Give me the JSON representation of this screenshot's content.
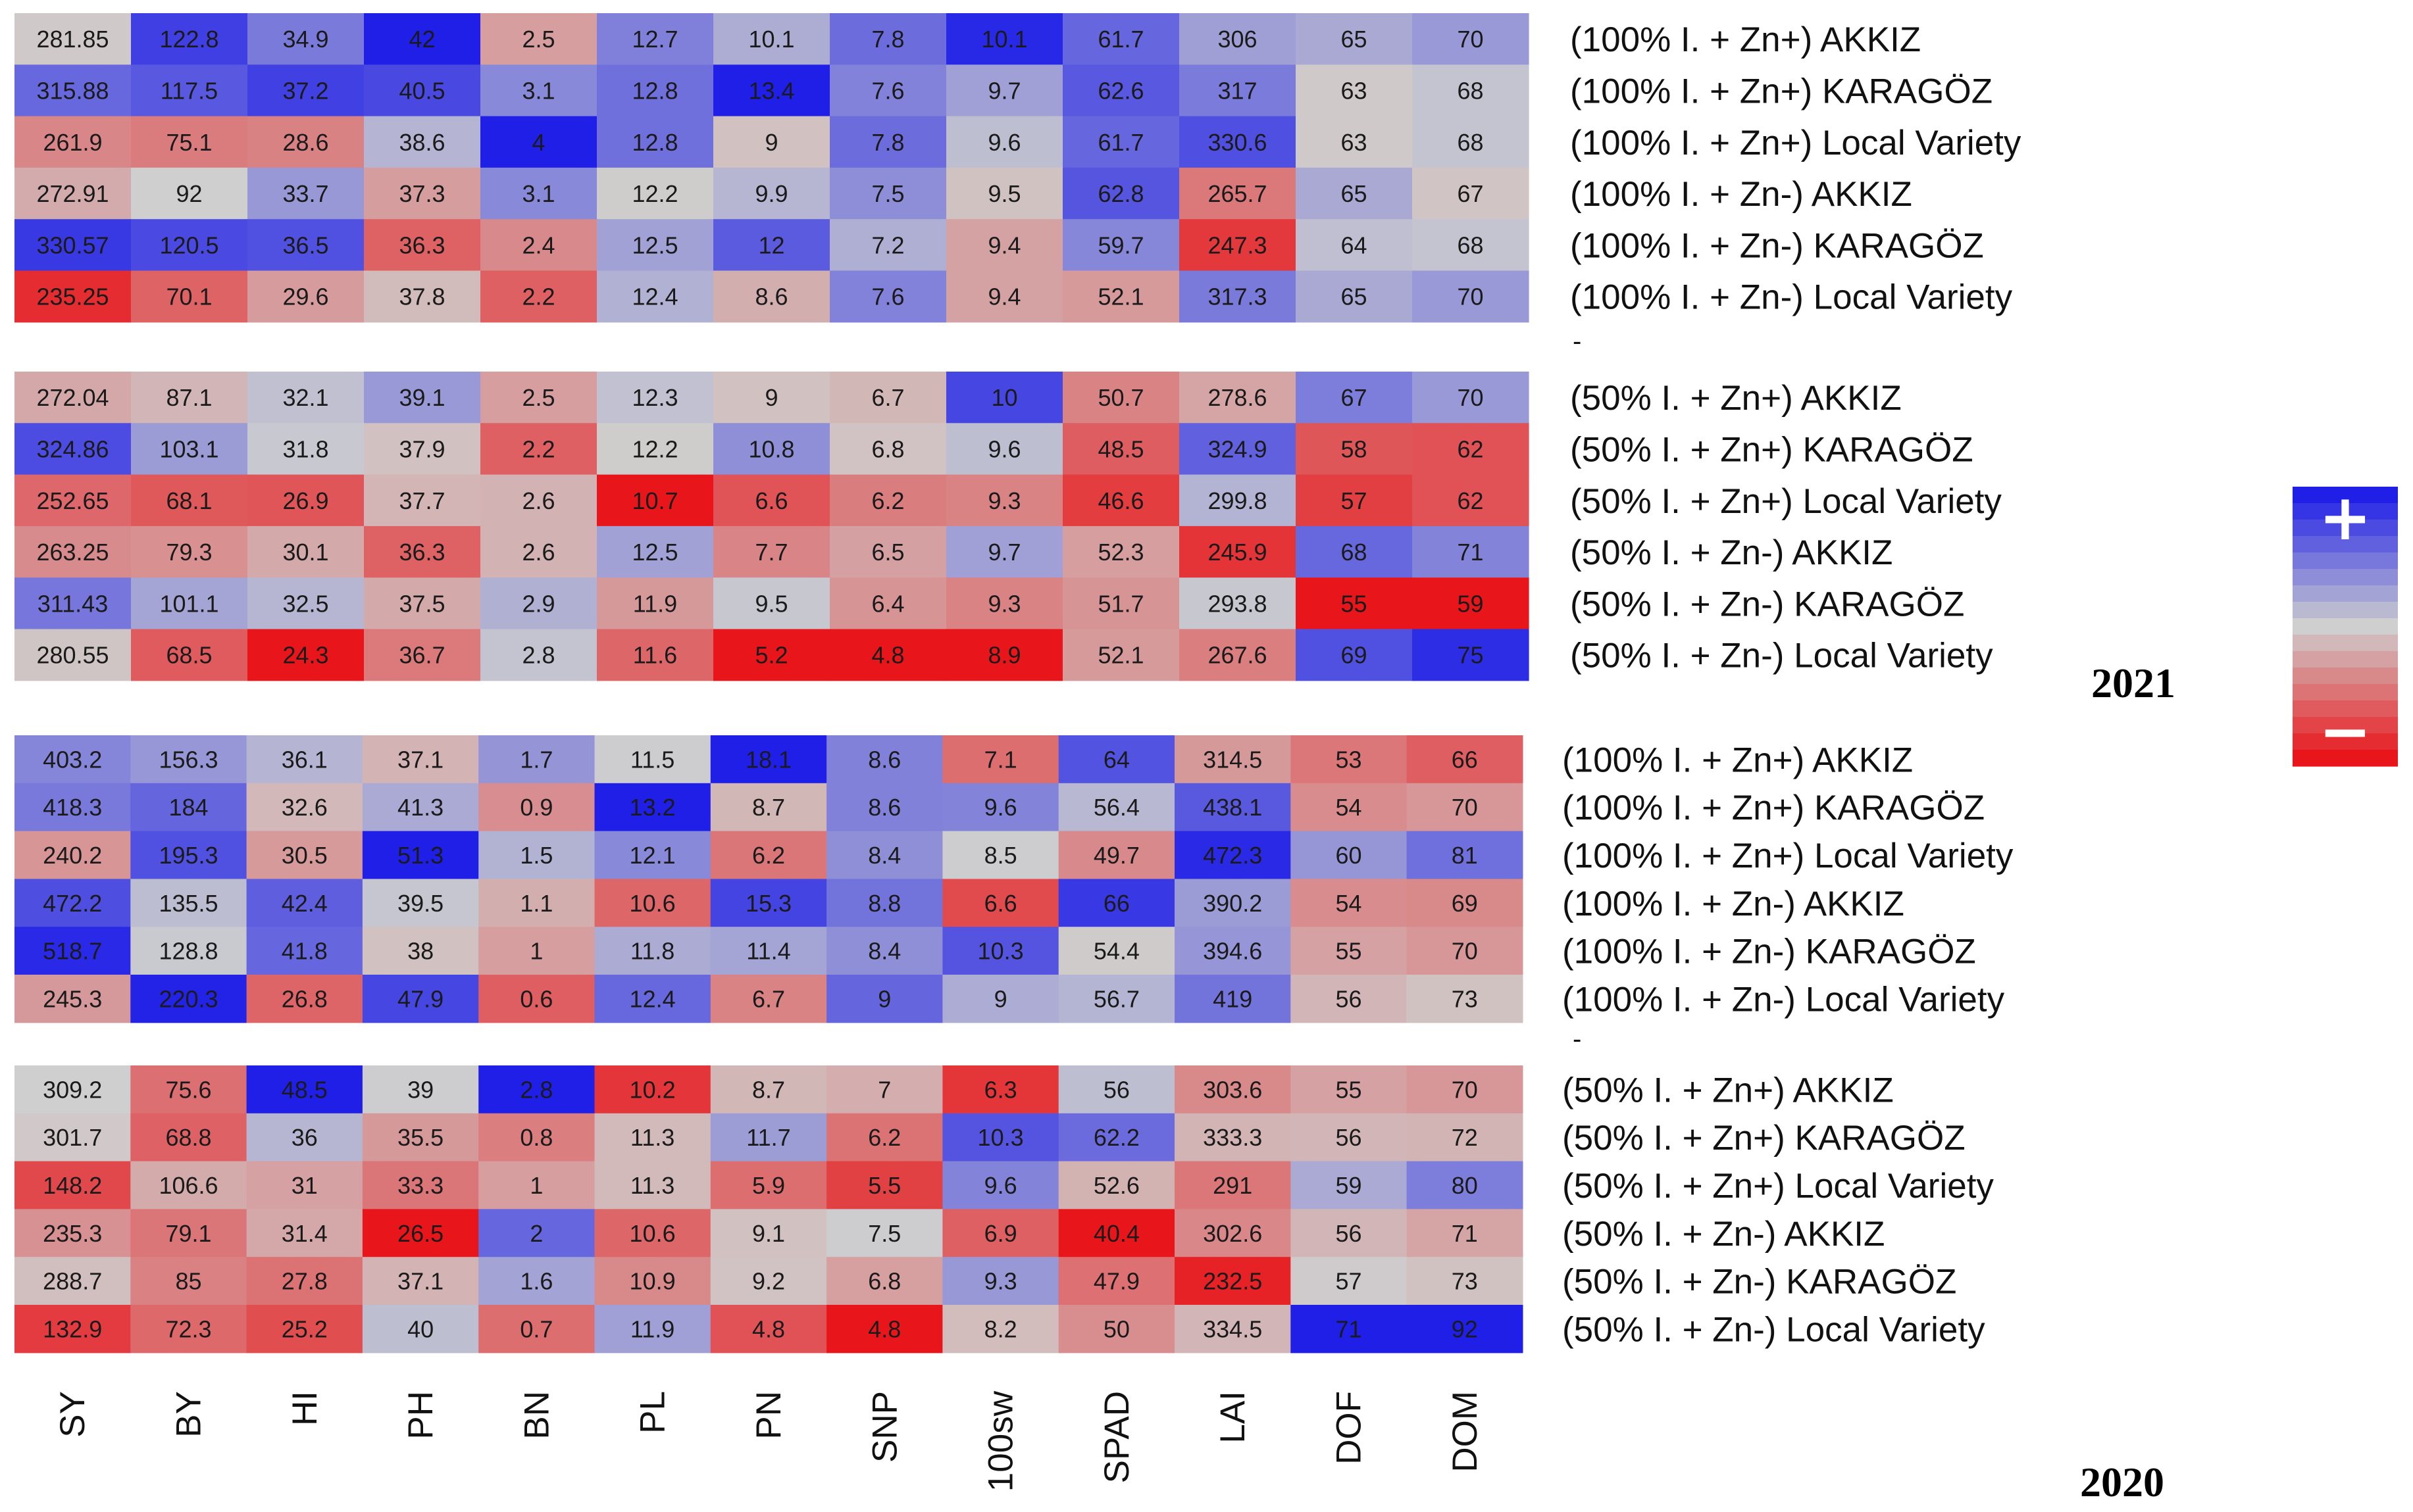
{
  "chart_data": {
    "type": "heatmap",
    "columns": [
      "SY",
      "BY",
      "HI",
      "PH",
      "BN",
      "PL",
      "PN",
      "SNP",
      "100sw",
      "SPAD",
      "LAI",
      "DOF",
      "DOM"
    ],
    "color_scale": {
      "high": "#1f1fe8",
      "mid": "#cfcfcf",
      "low": "#e8161a",
      "plus_label": "+",
      "minus_label": "−"
    },
    "separator": "-",
    "years": [
      {
        "year": "2021",
        "groups": [
          {
            "rows": [
              {
                "label": "(100% I. + Zn+) AKKIZ",
                "values": [
                  "281.85",
                  "122.8",
                  "34.9",
                  "42",
                  "2.5",
                  "12.7",
                  "10.1",
                  "7.8",
                  "10.1",
                  "61.7",
                  "306",
                  "65",
                  "70"
                ]
              },
              {
                "label": "(100% I. + Zn+) KARAGÖZ",
                "values": [
                  "315.88",
                  "117.5",
                  "37.2",
                  "40.5",
                  "3.1",
                  "12.8",
                  "13.4",
                  "7.6",
                  "9.7",
                  "62.6",
                  "317",
                  "63",
                  "68"
                ]
              },
              {
                "label": "(100% I. + Zn+) Local Variety",
                "values": [
                  "261.9",
                  "75.1",
                  "28.6",
                  "38.6",
                  "4",
                  "12.8",
                  "9",
                  "7.8",
                  "9.6",
                  "61.7",
                  "330.6",
                  "63",
                  "68"
                ]
              },
              {
                "label": "(100% I. + Zn-) AKKIZ",
                "values": [
                  "272.91",
                  "92",
                  "33.7",
                  "37.3",
                  "3.1",
                  "12.2",
                  "9.9",
                  "7.5",
                  "9.5",
                  "62.8",
                  "265.7",
                  "65",
                  "67"
                ]
              },
              {
                "label": "(100% I. + Zn-) KARAGÖZ",
                "values": [
                  "330.57",
                  "120.5",
                  "36.5",
                  "36.3",
                  "2.4",
                  "12.5",
                  "12",
                  "7.2",
                  "9.4",
                  "59.7",
                  "247.3",
                  "64",
                  "68"
                ]
              },
              {
                "label": "(100% I. + Zn-) Local Variety",
                "values": [
                  "235.25",
                  "70.1",
                  "29.6",
                  "37.8",
                  "2.2",
                  "12.4",
                  "8.6",
                  "7.6",
                  "9.4",
                  "52.1",
                  "317.3",
                  "65",
                  "70"
                ]
              }
            ]
          },
          {
            "rows": [
              {
                "label": "(50% I. + Zn+) AKKIZ",
                "values": [
                  "272.04",
                  "87.1",
                  "32.1",
                  "39.1",
                  "2.5",
                  "12.3",
                  "9",
                  "6.7",
                  "10",
                  "50.7",
                  "278.6",
                  "67",
                  "70"
                ]
              },
              {
                "label": "(50% I. + Zn+) KARAGÖZ",
                "values": [
                  "324.86",
                  "103.1",
                  "31.8",
                  "37.9",
                  "2.2",
                  "12.2",
                  "10.8",
                  "6.8",
                  "9.6",
                  "48.5",
                  "324.9",
                  "58",
                  "62"
                ]
              },
              {
                "label": "(50% I. + Zn+) Local Variety",
                "values": [
                  "252.65",
                  "68.1",
                  "26.9",
                  "37.7",
                  "2.6",
                  "10.7",
                  "6.6",
                  "6.2",
                  "9.3",
                  "46.6",
                  "299.8",
                  "57",
                  "62"
                ]
              },
              {
                "label": "(50% I. + Zn-) AKKIZ",
                "values": [
                  "263.25",
                  "79.3",
                  "30.1",
                  "36.3",
                  "2.6",
                  "12.5",
                  "7.7",
                  "6.5",
                  "9.7",
                  "52.3",
                  "245.9",
                  "68",
                  "71"
                ]
              },
              {
                "label": "(50% I. + Zn-) KARAGÖZ",
                "values": [
                  "311.43",
                  "101.1",
                  "32.5",
                  "37.5",
                  "2.9",
                  "11.9",
                  "9.5",
                  "6.4",
                  "9.3",
                  "51.7",
                  "293.8",
                  "55",
                  "59"
                ]
              },
              {
                "label": "(50% I. + Zn-) Local Variety",
                "values": [
                  "280.55",
                  "68.5",
                  "24.3",
                  "36.7",
                  "2.8",
                  "11.6",
                  "5.2",
                  "4.8",
                  "8.9",
                  "52.1",
                  "267.6",
                  "69",
                  "75"
                ]
              }
            ]
          }
        ]
      },
      {
        "year": "2020",
        "groups": [
          {
            "rows": [
              {
                "label": "(100% I. + Zn+) AKKIZ",
                "values": [
                  "403.2",
                  "156.3",
                  "36.1",
                  "37.1",
                  "1.7",
                  "11.5",
                  "18.1",
                  "8.6",
                  "7.1",
                  "64",
                  "314.5",
                  "53",
                  "66"
                ]
              },
              {
                "label": "(100% I. + Zn+) KARAGÖZ",
                "values": [
                  "418.3",
                  "184",
                  "32.6",
                  "41.3",
                  "0.9",
                  "13.2",
                  "8.7",
                  "8.6",
                  "9.6",
                  "56.4",
                  "438.1",
                  "54",
                  "70"
                ]
              },
              {
                "label": "(100% I. + Zn+) Local Variety",
                "values": [
                  "240.2",
                  "195.3",
                  "30.5",
                  "51.3",
                  "1.5",
                  "12.1",
                  "6.2",
                  "8.4",
                  "8.5",
                  "49.7",
                  "472.3",
                  "60",
                  "81"
                ]
              },
              {
                "label": "(100% I. + Zn-) AKKIZ",
                "values": [
                  "472.2",
                  "135.5",
                  "42.4",
                  "39.5",
                  "1.1",
                  "10.6",
                  "15.3",
                  "8.8",
                  "6.6",
                  "66",
                  "390.2",
                  "54",
                  "69"
                ]
              },
              {
                "label": "(100% I. + Zn-) KARAGÖZ",
                "values": [
                  "518.7",
                  "128.8",
                  "41.8",
                  "38",
                  "1",
                  "11.8",
                  "11.4",
                  "8.4",
                  "10.3",
                  "54.4",
                  "394.6",
                  "55",
                  "70"
                ]
              },
              {
                "label": "(100% I. + Zn-) Local Variety",
                "values": [
                  "245.3",
                  "220.3",
                  "26.8",
                  "47.9",
                  "0.6",
                  "12.4",
                  "6.7",
                  "9",
                  "9",
                  "56.7",
                  "419",
                  "56",
                  "73"
                ]
              }
            ]
          },
          {
            "rows": [
              {
                "label": "(50% I. + Zn+) AKKIZ",
                "values": [
                  "309.2",
                  "75.6",
                  "48.5",
                  "39",
                  "2.8",
                  "10.2",
                  "8.7",
                  "7",
                  "6.3",
                  "56",
                  "303.6",
                  "55",
                  "70"
                ]
              },
              {
                "label": "(50% I. + Zn+) KARAGÖZ",
                "values": [
                  "301.7",
                  "68.8",
                  "36",
                  "35.5",
                  "0.8",
                  "11.3",
                  "11.7",
                  "6.2",
                  "10.3",
                  "62.2",
                  "333.3",
                  "56",
                  "72"
                ]
              },
              {
                "label": "(50% I. + Zn+) Local Variety",
                "values": [
                  "148.2",
                  "106.6",
                  "31",
                  "33.3",
                  "1",
                  "11.3",
                  "5.9",
                  "5.5",
                  "9.6",
                  "52.6",
                  "291",
                  "59",
                  "80"
                ]
              },
              {
                "label": "(50% I. + Zn-) AKKIZ",
                "values": [
                  "235.3",
                  "79.1",
                  "31.4",
                  "26.5",
                  "2",
                  "10.6",
                  "9.1",
                  "7.5",
                  "6.9",
                  "40.4",
                  "302.6",
                  "56",
                  "71"
                ]
              },
              {
                "label": "(50% I. + Zn-) KARAGÖZ",
                "values": [
                  "288.7",
                  "85",
                  "27.8",
                  "37.1",
                  "1.6",
                  "10.9",
                  "9.2",
                  "6.8",
                  "9.3",
                  "47.9",
                  "232.5",
                  "57",
                  "73"
                ]
              },
              {
                "label": "(50% I. + Zn-) Local Variety",
                "values": [
                  "132.9",
                  "72.3",
                  "25.2",
                  "40",
                  "0.7",
                  "11.9",
                  "4.8",
                  "4.8",
                  "8.2",
                  "50",
                  "334.5",
                  "71",
                  "92"
                ]
              }
            ]
          }
        ]
      }
    ]
  }
}
